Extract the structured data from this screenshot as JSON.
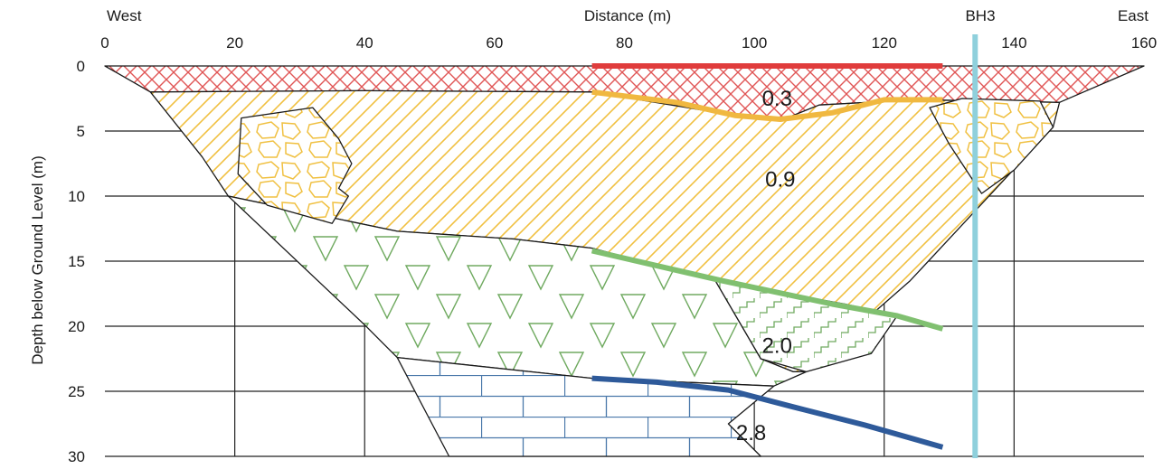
{
  "chart_data": {
    "type": "cross-section",
    "x_axis": {
      "title": "Distance (m)",
      "range": [
        0,
        160
      ],
      "ticks": [
        0,
        20,
        40,
        60,
        80,
        100,
        120,
        140,
        160
      ],
      "left_label": "West",
      "right_label": "East"
    },
    "y_axis": {
      "title": "Depth below Ground Level (m)",
      "range": [
        0,
        30
      ],
      "ticks": [
        0,
        5,
        10,
        15,
        20,
        25,
        30
      ]
    },
    "borehole": {
      "label": "BH3",
      "x": 134,
      "color": "#8fd0dc"
    },
    "layers": [
      {
        "name": "top-layer",
        "hatch": "crosshatch",
        "color": "#e05555",
        "polygon": [
          [
            0,
            0
          ],
          [
            160,
            0
          ],
          [
            147,
            2.8
          ],
          [
            125,
            2.6
          ],
          [
            110,
            3
          ],
          [
            105,
            4
          ],
          [
            97,
            3.8
          ],
          [
            75,
            2
          ],
          [
            40,
            1.9
          ],
          [
            7,
            2
          ]
        ]
      },
      {
        "name": "second-layer",
        "hatch": "diagonal",
        "color": "#f0c040",
        "polygon": [
          [
            7,
            2
          ],
          [
            40,
            1.9
          ],
          [
            75,
            2
          ],
          [
            97,
            3.8
          ],
          [
            105,
            4
          ],
          [
            110,
            3
          ],
          [
            125,
            2.6
          ],
          [
            147,
            2.8
          ],
          [
            146,
            4.7
          ],
          [
            138,
            9
          ],
          [
            124,
            16.5
          ],
          [
            108,
            23.5
          ],
          [
            106,
            23.5
          ],
          [
            101,
            22.5
          ],
          [
            94,
            16.5
          ],
          [
            75,
            14
          ],
          [
            63,
            13.3
          ],
          [
            45,
            12.7
          ],
          [
            19,
            10
          ],
          [
            15,
            7
          ]
        ]
      },
      {
        "name": "third-layer",
        "hatch": "triangles",
        "color": "#70aa60",
        "polygon": [
          [
            19,
            10
          ],
          [
            45,
            12.7
          ],
          [
            63,
            13.3
          ],
          [
            75,
            14
          ],
          [
            94,
            16.5
          ],
          [
            101,
            22.5
          ],
          [
            106,
            23.5
          ],
          [
            108,
            23.5
          ],
          [
            103,
            24.6
          ],
          [
            75,
            24
          ],
          [
            45,
            22.4
          ],
          [
            40,
            19.9
          ]
        ]
      },
      {
        "name": "bottom-layer",
        "hatch": "bricks",
        "color": "#4a78aa",
        "polygon": [
          [
            45,
            22.4
          ],
          [
            75,
            24
          ],
          [
            103,
            24.6
          ],
          [
            96,
            27.5
          ],
          [
            101,
            30
          ],
          [
            53,
            30
          ]
        ]
      }
    ],
    "inclusions": [
      {
        "name": "boulder-lens-west",
        "color": "#f0c040",
        "polygon": [
          [
            21,
            4
          ],
          [
            32,
            3.2
          ],
          [
            36,
            5.6
          ],
          [
            38,
            7.5
          ],
          [
            36,
            9.4
          ],
          [
            37.5,
            10
          ],
          [
            35,
            12.1
          ],
          [
            25,
            10.7
          ],
          [
            20.5,
            8.3
          ]
        ]
      },
      {
        "name": "boulder-lens-east",
        "color": "#f0c040",
        "polygon": [
          [
            127,
            3.2
          ],
          [
            132,
            2.5
          ],
          [
            144,
            2.7
          ],
          [
            146,
            4.7
          ],
          [
            140,
            8
          ],
          [
            135,
            9.8
          ],
          [
            130,
            6
          ]
        ]
      },
      {
        "name": "step-lens",
        "hatch": "steps",
        "color": "#70aa60",
        "polygon": [
          [
            94,
            16.5
          ],
          [
            114,
            18.3
          ],
          [
            122,
            19.2
          ],
          [
            118,
            22.1
          ],
          [
            108,
            23.5
          ],
          [
            101,
            22.5
          ]
        ]
      }
    ],
    "survey_lines": [
      {
        "name": "line-0.3",
        "color": "#e03c3c",
        "points": [
          [
            75,
            0
          ],
          [
            129,
            0
          ]
        ]
      },
      {
        "name": "line-0.9",
        "color": "#f0b840",
        "points": [
          [
            75,
            2
          ],
          [
            88,
            2.8
          ],
          [
            97,
            3.8
          ],
          [
            104,
            4.1
          ],
          [
            112,
            3.6
          ],
          [
            120,
            2.6
          ],
          [
            129,
            2.6
          ]
        ]
      },
      {
        "name": "line-2.0",
        "color": "#80c070",
        "points": [
          [
            75,
            14.2
          ],
          [
            95,
            16.5
          ],
          [
            112,
            18.3
          ],
          [
            122,
            19.2
          ],
          [
            129,
            20.2
          ]
        ]
      },
      {
        "name": "line-2.8",
        "color": "#2e5a9a",
        "points": [
          [
            75,
            24
          ],
          [
            85,
            24.3
          ],
          [
            96,
            24.9
          ],
          [
            106,
            26.2
          ],
          [
            117,
            27.6
          ],
          [
            129,
            29.3
          ]
        ]
      }
    ],
    "annotations": [
      {
        "text": "0.3",
        "x": 103.5,
        "y": 2.5
      },
      {
        "text": "0.9",
        "x": 104,
        "y": 8.7
      },
      {
        "text": "2.0",
        "x": 103.5,
        "y": 21.5
      },
      {
        "text": "2.8",
        "x": 99.5,
        "y": 28.2
      }
    ],
    "grid": true
  }
}
